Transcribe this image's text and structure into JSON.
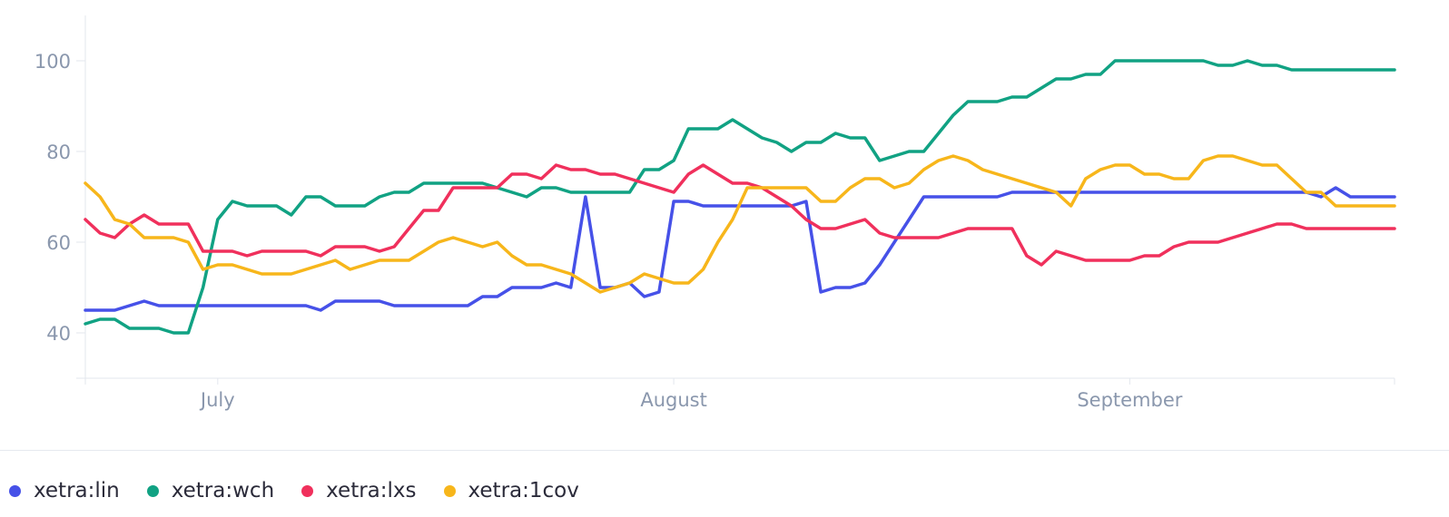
{
  "chart_data": {
    "type": "line",
    "title": "",
    "xlabel": "",
    "ylabel": "",
    "x_tick_labels": [
      "July",
      "August",
      "September"
    ],
    "x_ticks": [
      "2023-07-01",
      "2023-08-01",
      "2023-09-01"
    ],
    "x_range": [
      "2023-06-22",
      "2023-09-19"
    ],
    "y_ticks": [
      40,
      60,
      80,
      100
    ],
    "ylim": [
      30,
      110
    ],
    "grid": false,
    "legend_position": "bottom-left",
    "x": [
      "2023-06-22",
      "2023-06-23",
      "2023-06-24",
      "2023-06-25",
      "2023-06-26",
      "2023-06-27",
      "2023-06-28",
      "2023-06-29",
      "2023-06-30",
      "2023-07-01",
      "2023-07-02",
      "2023-07-03",
      "2023-07-04",
      "2023-07-05",
      "2023-07-06",
      "2023-07-07",
      "2023-07-08",
      "2023-07-09",
      "2023-07-10",
      "2023-07-11",
      "2023-07-12",
      "2023-07-13",
      "2023-07-14",
      "2023-07-15",
      "2023-07-16",
      "2023-07-17",
      "2023-07-18",
      "2023-07-19",
      "2023-07-20",
      "2023-07-21",
      "2023-07-22",
      "2023-07-23",
      "2023-07-24",
      "2023-07-25",
      "2023-07-26",
      "2023-07-27",
      "2023-07-28",
      "2023-07-29",
      "2023-07-30",
      "2023-07-31",
      "2023-08-01",
      "2023-08-02",
      "2023-08-03",
      "2023-08-04",
      "2023-08-05",
      "2023-08-06",
      "2023-08-07",
      "2023-08-08",
      "2023-08-09",
      "2023-08-10",
      "2023-08-11",
      "2023-08-12",
      "2023-08-13",
      "2023-08-14",
      "2023-08-15",
      "2023-08-16",
      "2023-08-17",
      "2023-08-18",
      "2023-08-19",
      "2023-08-20",
      "2023-08-21",
      "2023-08-22",
      "2023-08-23",
      "2023-08-24",
      "2023-08-25",
      "2023-08-26",
      "2023-08-27",
      "2023-08-28",
      "2023-08-29",
      "2023-08-30",
      "2023-08-31",
      "2023-09-01",
      "2023-09-02",
      "2023-09-03",
      "2023-09-04",
      "2023-09-05",
      "2023-09-06",
      "2023-09-07",
      "2023-09-08",
      "2023-09-09",
      "2023-09-10",
      "2023-09-11",
      "2023-09-12",
      "2023-09-13",
      "2023-09-14",
      "2023-09-15",
      "2023-09-16",
      "2023-09-17",
      "2023-09-18",
      "2023-09-19"
    ],
    "series": [
      {
        "name": "xetra:lin",
        "color": "#4651e8",
        "values": [
          45,
          45,
          45,
          46,
          47,
          46,
          46,
          46,
          46,
          46,
          46,
          46,
          46,
          46,
          46,
          46,
          45,
          47,
          47,
          47,
          47,
          46,
          46,
          46,
          46,
          46,
          46,
          48,
          48,
          50,
          50,
          50,
          51,
          50,
          70,
          50,
          50,
          51,
          48,
          49,
          69,
          69,
          68,
          68,
          68,
          68,
          68,
          68,
          68,
          69,
          49,
          50,
          50,
          51,
          55,
          60,
          65,
          70,
          70,
          70,
          70,
          70,
          70,
          71,
          71,
          71,
          71,
          71,
          71,
          71,
          71,
          71,
          71,
          71,
          71,
          71,
          71,
          71,
          71,
          71,
          71,
          71,
          71,
          71,
          70,
          72,
          70,
          70,
          70,
          70
        ]
      },
      {
        "name": "xetra:wch",
        "color": "#11a283",
        "values": [
          42,
          43,
          43,
          41,
          41,
          41,
          40,
          40,
          50,
          65,
          69,
          68,
          68,
          68,
          66,
          70,
          70,
          68,
          68,
          68,
          70,
          71,
          71,
          73,
          73,
          73,
          73,
          73,
          72,
          71,
          70,
          72,
          72,
          71,
          71,
          71,
          71,
          71,
          76,
          76,
          78,
          85,
          85,
          85,
          87,
          85,
          83,
          82,
          80,
          82,
          82,
          84,
          83,
          83,
          78,
          79,
          80,
          80,
          84,
          88,
          91,
          91,
          91,
          92,
          92,
          94,
          96,
          96,
          97,
          97,
          100,
          100,
          100,
          100,
          100,
          100,
          100,
          99,
          99,
          100,
          99,
          99,
          98,
          98,
          98,
          98,
          98,
          98,
          98,
          98
        ]
      },
      {
        "name": "xetra:lxs",
        "color": "#f0305c",
        "values": [
          65,
          62,
          61,
          64,
          66,
          64,
          64,
          64,
          58,
          58,
          58,
          57,
          58,
          58,
          58,
          58,
          57,
          59,
          59,
          59,
          58,
          59,
          63,
          67,
          67,
          72,
          72,
          72,
          72,
          75,
          75,
          74,
          77,
          76,
          76,
          75,
          75,
          74,
          73,
          72,
          71,
          75,
          77,
          75,
          73,
          73,
          72,
          70,
          68,
          65,
          63,
          63,
          64,
          65,
          62,
          61,
          61,
          61,
          61,
          62,
          63,
          63,
          63,
          63,
          57,
          55,
          58,
          57,
          56,
          56,
          56,
          56,
          57,
          57,
          59,
          60,
          60,
          60,
          61,
          62,
          63,
          64,
          64,
          63,
          63,
          63,
          63,
          63,
          63,
          63
        ]
      },
      {
        "name": "xetra:1cov",
        "color": "#f7b61b",
        "values": [
          73,
          70,
          65,
          64,
          61,
          61,
          61,
          60,
          54,
          55,
          55,
          54,
          53,
          53,
          53,
          54,
          55,
          56,
          54,
          55,
          56,
          56,
          56,
          58,
          60,
          61,
          60,
          59,
          60,
          57,
          55,
          55,
          54,
          53,
          51,
          49,
          50,
          51,
          53,
          52,
          51,
          51,
          54,
          60,
          65,
          72,
          72,
          72,
          72,
          72,
          69,
          69,
          72,
          74,
          74,
          72,
          73,
          76,
          78,
          79,
          78,
          76,
          75,
          74,
          73,
          72,
          71,
          68,
          74,
          76,
          77,
          77,
          75,
          75,
          74,
          74,
          78,
          79,
          79,
          78,
          77,
          77,
          74,
          71,
          71,
          68,
          68,
          68,
          68,
          68
        ]
      }
    ]
  }
}
